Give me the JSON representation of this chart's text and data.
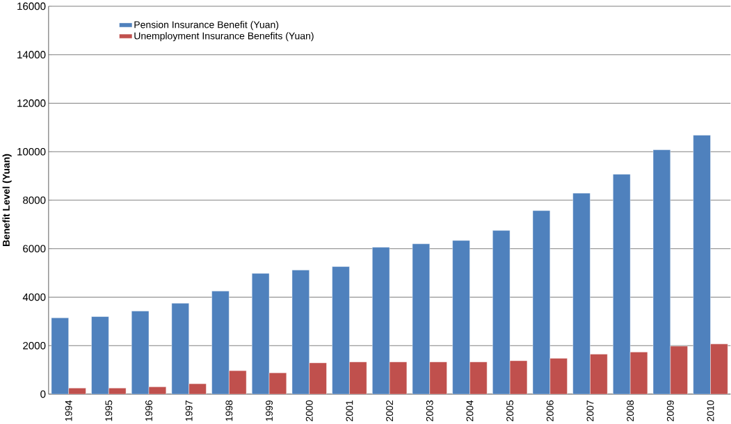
{
  "chart_data": {
    "type": "bar",
    "ylabel": "Benefit Level (Yuan)",
    "categories": [
      "1994",
      "1995",
      "1996",
      "1997",
      "1998",
      "1999",
      "2000",
      "2001",
      "2002",
      "2003",
      "2004",
      "2005",
      "2006",
      "2007",
      "2008",
      "2009",
      "2010"
    ],
    "series": [
      {
        "name": "Pension Insurance Benefit (Yuan)",
        "color": "#4f81bd",
        "values": [
          3150,
          3200,
          3430,
          3750,
          4250,
          4980,
          5120,
          5260,
          6060,
          6200,
          6340,
          6750,
          7570,
          8290,
          9070,
          10080,
          10680
        ]
      },
      {
        "name": "Unemployment Insurance Benefits (Yuan)",
        "color": "#c0504d",
        "values": [
          250,
          250,
          300,
          430,
          970,
          880,
          1290,
          1330,
          1330,
          1330,
          1330,
          1380,
          1480,
          1650,
          1740,
          1980,
          2070
        ]
      }
    ],
    "ylim": [
      0,
      16000
    ],
    "yticks": [
      0,
      2000,
      4000,
      6000,
      8000,
      10000,
      12000,
      14000,
      16000
    ],
    "grid": "y",
    "legend": "top left"
  }
}
